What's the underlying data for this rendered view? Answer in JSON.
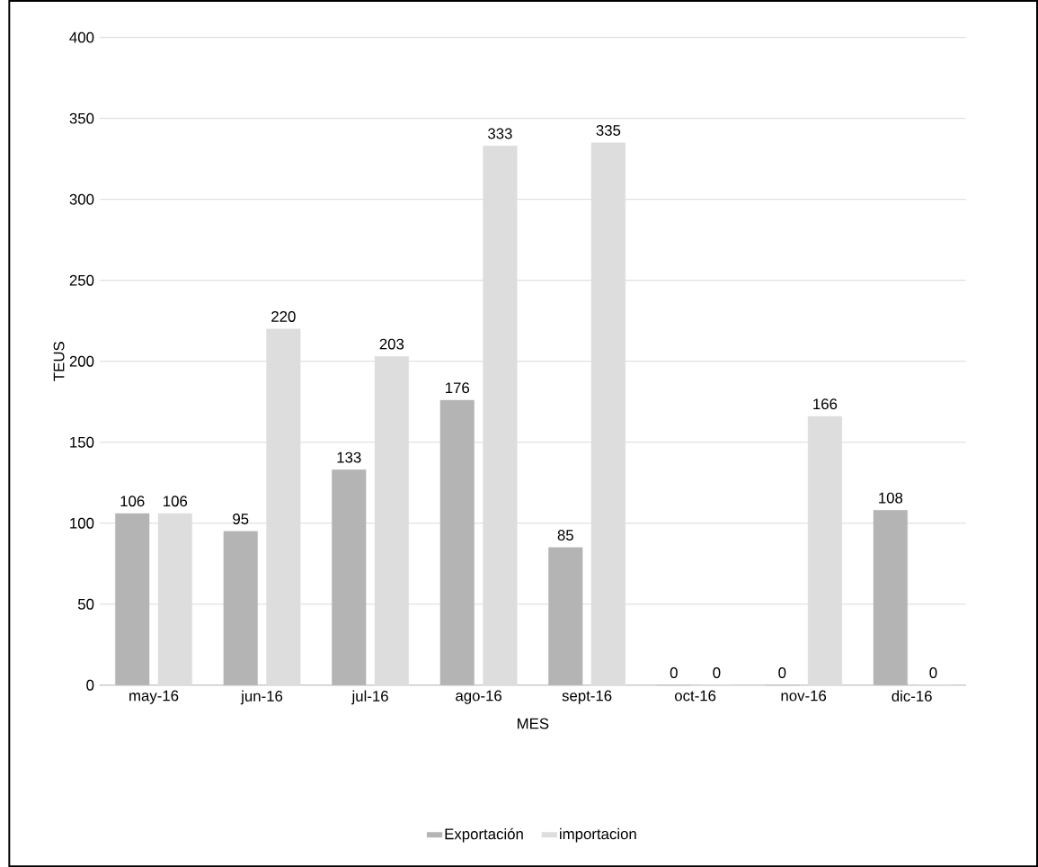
{
  "chart_data": {
    "type": "bar",
    "xlabel": "MES",
    "ylabel": "TEUS",
    "categories": [
      "may-16",
      "jun-16",
      "jul-16",
      "ago-16",
      "sept-16",
      "oct-16",
      "nov-16",
      "dic-16"
    ],
    "series": [
      {
        "name": "Exportación",
        "color": "#b4b4b4",
        "values": [
          106,
          95,
          133,
          176,
          85,
          0,
          0,
          108
        ]
      },
      {
        "name": "importacion",
        "color": "#dddddd",
        "values": [
          106,
          220,
          203,
          333,
          335,
          0,
          166,
          0
        ]
      }
    ],
    "ylim": [
      0,
      400
    ],
    "yticks": [
      0,
      50,
      100,
      150,
      200,
      250,
      300,
      350,
      400
    ],
    "grid": "y",
    "legend": "bottom",
    "data_labels": true
  }
}
